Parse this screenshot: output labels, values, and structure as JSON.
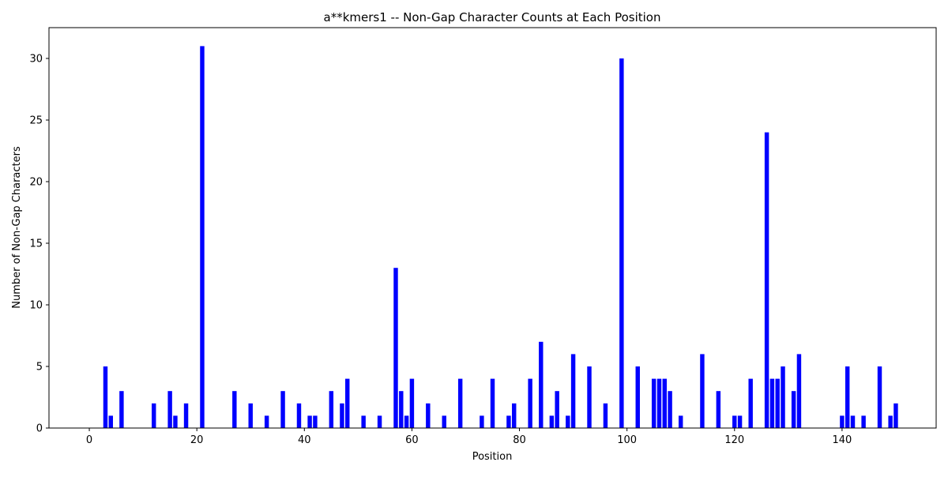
{
  "chart_data": {
    "type": "bar",
    "title": "a**kmers1 -- Non-Gap Character Counts at Each Position",
    "xlabel": "Position",
    "ylabel": "Number of Non-Gap Characters",
    "xlim": [
      -7.5,
      157.5
    ],
    "ylim": [
      0,
      32.5
    ],
    "xticks": [
      0,
      20,
      40,
      60,
      80,
      100,
      120,
      140
    ],
    "yticks": [
      0,
      5,
      10,
      15,
      20,
      25,
      30
    ],
    "grid": false,
    "bar_color": "#0000ff",
    "x": [
      3,
      4,
      6,
      12,
      15,
      16,
      18,
      21,
      27,
      30,
      33,
      36,
      39,
      41,
      42,
      45,
      47,
      48,
      51,
      54,
      57,
      58,
      59,
      60,
      63,
      66,
      69,
      73,
      75,
      78,
      79,
      82,
      84,
      86,
      87,
      89,
      90,
      93,
      96,
      99,
      102,
      105,
      106,
      107,
      108,
      110,
      114,
      117,
      120,
      121,
      123,
      126,
      127,
      128,
      129,
      131,
      132,
      140,
      141,
      142,
      144,
      147,
      149,
      150
    ],
    "values": [
      5,
      1,
      3,
      2,
      3,
      1,
      2,
      31,
      3,
      2,
      1,
      3,
      2,
      1,
      1,
      3,
      2,
      4,
      1,
      1,
      13,
      3,
      1,
      4,
      2,
      1,
      4,
      1,
      4,
      1,
      2,
      4,
      7,
      1,
      3,
      1,
      6,
      5,
      2,
      30,
      5,
      4,
      4,
      4,
      3,
      1,
      6,
      3,
      1,
      1,
      4,
      24,
      4,
      4,
      5,
      3,
      6,
      1,
      5,
      1,
      1,
      5,
      1,
      2
    ]
  }
}
